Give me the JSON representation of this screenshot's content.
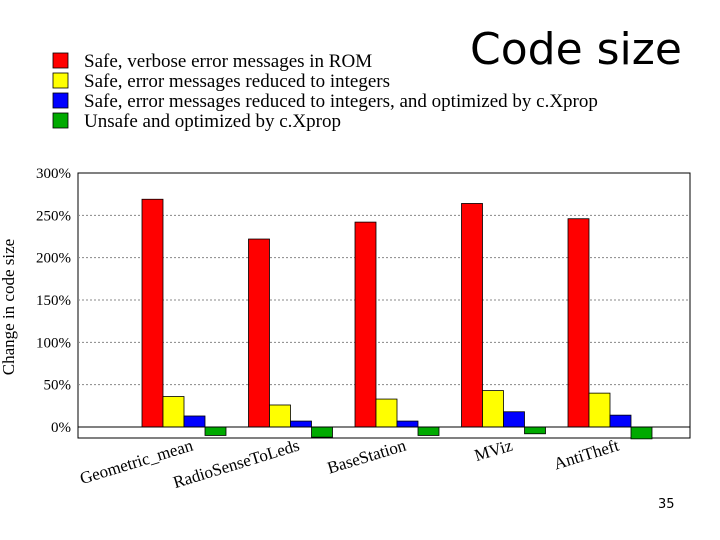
{
  "slide": {
    "title": "Code size",
    "page_number": "35"
  },
  "chart_data": {
    "type": "bar",
    "title": "",
    "xlabel": "",
    "ylabel": "Change in code size",
    "ylim": [
      0,
      300
    ],
    "y_unit": "%",
    "y_ticks": [
      "0%",
      "50%",
      "100%",
      "150%",
      "200%",
      "250%",
      "300%"
    ],
    "grid": true,
    "legend_position": "top-left",
    "categories": [
      "Geometric_mean",
      "RadioSenseToLeds",
      "BaseStation",
      "MViz",
      "AntiTheft"
    ],
    "series": [
      {
        "name": "Safe, verbose error messages in ROM",
        "color": "#ff0000",
        "values": [
          269,
          222,
          242,
          264,
          246
        ]
      },
      {
        "name": "Safe, error messages reduced to integers",
        "color": "#ffff00",
        "values": [
          36,
          26,
          33,
          43,
          40
        ]
      },
      {
        "name": "Safe, error messages reduced to integers, and optimized by c.Xprop",
        "color": "#0000ff",
        "values": [
          13,
          7,
          7,
          18,
          14
        ]
      },
      {
        "name": "Unsafe and optimized by c.Xprop",
        "color": "#00aa00",
        "values": [
          -10,
          -12,
          -10,
          -8,
          -14
        ]
      }
    ]
  }
}
